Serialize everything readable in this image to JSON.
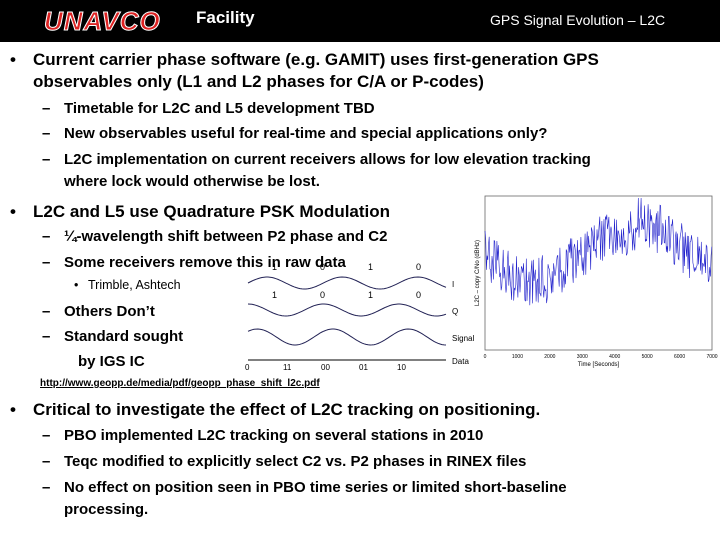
{
  "header": {
    "logo": "UNAVCO",
    "left": "Facility",
    "right": "GPS Signal Evolution – L2C"
  },
  "bullets": [
    {
      "lines": [
        "Current carrier phase software (e.g. GAMIT) uses first-generation GPS",
        "observables only (L1 and L2 phases for C/A or P-codes)"
      ],
      "subs": [
        {
          "lines": [
            "Timetable for L2C and L5 development TBD"
          ]
        },
        {
          "lines": [
            "New observables useful for real-time and special applications only?"
          ]
        },
        {
          "lines": [
            "L2C implementation on current receivers allows for low elevation tracking",
            "where lock would otherwise be lost."
          ]
        }
      ]
    },
    {
      "lines": [
        "L2C and L5 use Quadrature PSK Modulation"
      ],
      "subs": [
        {
          "lines": [
            "¼-wavelength shift between P2 phase and C2"
          ]
        },
        {
          "lines": [
            "Some receivers remove this in raw data"
          ],
          "subsubs": [
            "Trimble, Ashtech"
          ]
        },
        {
          "lines": [
            "Others Don’t"
          ]
        },
        {
          "lines": [
            "Standard sought",
            "by IGS IC"
          ]
        }
      ]
    },
    {
      "lines": [
        "Critical to investigate the effect of L2C tracking on positioning."
      ],
      "subs": [
        {
          "lines": [
            "PBO implemented L2C tracking on several stations in 2010"
          ]
        },
        {
          "lines": [
            "Teqc modified to explicitly select C2 vs. P2 phases in RINEX files"
          ]
        },
        {
          "lines": [
            "No effect on position seen in PBO time series or limited short-baseline",
            "processing."
          ]
        }
      ]
    }
  ],
  "link": "http://www.geopp.de/media/pdf/geopp_phase_shift_l2c.pdf",
  "qpsk": {
    "rows": [
      "I",
      "Q",
      "Signal",
      "Data"
    ],
    "ibits": [
      "1",
      "0",
      "1",
      "0"
    ],
    "qbits": [
      "1",
      "0",
      "1",
      "0"
    ],
    "databits": [
      "0",
      "11",
      "00",
      "01",
      "10"
    ]
  },
  "plot": {
    "ylabel": "L2C – copy C/No (dBHz)",
    "xlabel": "Time [Seconds]",
    "xticks": [
      "0",
      "1000",
      "2000",
      "3000",
      "4000",
      "5000",
      "6000",
      "7000"
    ]
  }
}
